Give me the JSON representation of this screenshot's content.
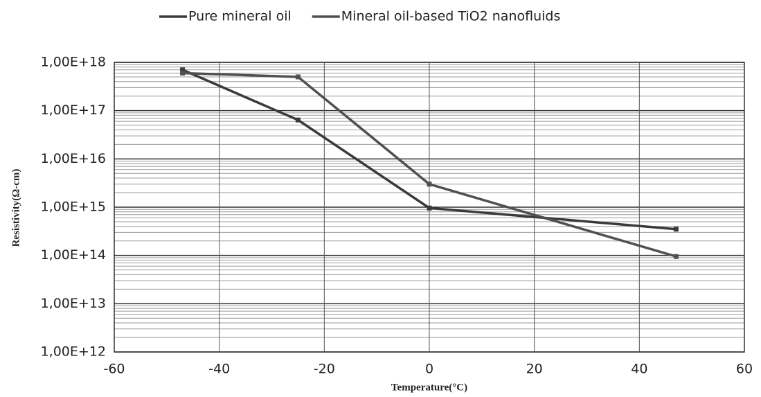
{
  "chart_data": {
    "type": "line",
    "x_label": "Temperature(°C)",
    "y_label": "Resistivity(Ω-cm)",
    "x": [
      -47,
      -25,
      0,
      47
    ],
    "series": [
      {
        "name": "Pure mineral oil",
        "color": "#3a3a3a",
        "values": [
          7e+17,
          6.4e+16,
          960000000000000.0,
          350000000000000.0
        ]
      },
      {
        "name": "Mineral oil-based TiO2 nanofluids",
        "color": "#505050",
        "values": [
          6e+17,
          5e+17,
          3000000000000000.0,
          95000000000000.0
        ]
      }
    ],
    "xlim": [
      -60,
      60
    ],
    "xticks": [
      -60,
      -40,
      -20,
      0,
      20,
      40,
      60
    ],
    "ylim": [
      1000000000000.0,
      1e+18
    ],
    "yscale": "log",
    "yticks": [
      {
        "value": 1000000000000.0,
        "label": "1,00E+12"
      },
      {
        "value": 10000000000000.0,
        "label": "1,00E+13"
      },
      {
        "value": 100000000000000.0,
        "label": "1,00E+14"
      },
      {
        "value": 1000000000000000.0,
        "label": "1,00E+15"
      },
      {
        "value": 1e+16,
        "label": "1,00E+16"
      },
      {
        "value": 1e+17,
        "label": "1,00E+17"
      },
      {
        "value": 1e+18,
        "label": "1,00E+18"
      }
    ],
    "grid": true,
    "legend": "top"
  }
}
